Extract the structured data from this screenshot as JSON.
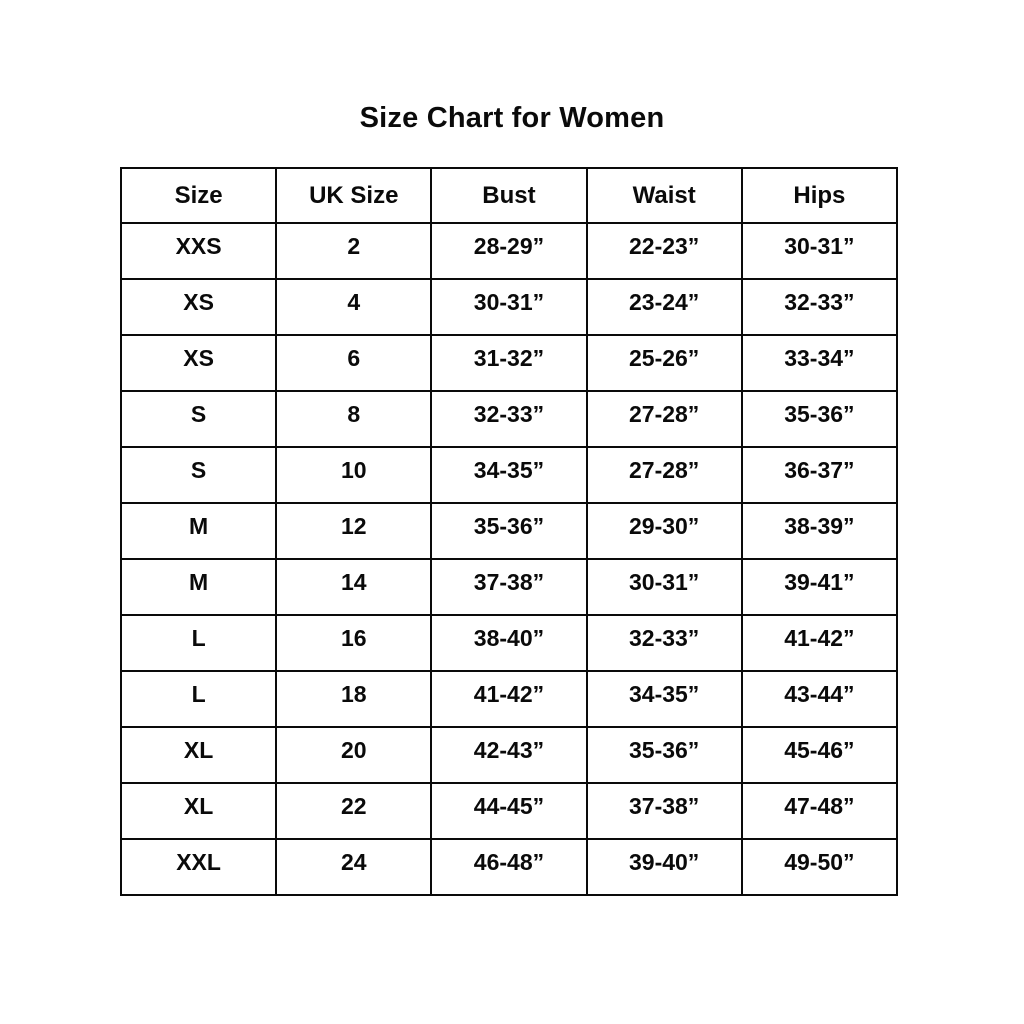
{
  "chart_data": {
    "type": "table",
    "title": "Size Chart for Women",
    "headers": [
      "Size",
      "UK Size",
      "Bust",
      "Waist",
      "Hips"
    ],
    "rows": [
      [
        "XXS",
        "2",
        "28-29”",
        "22-23”",
        "30-31”"
      ],
      [
        "XS",
        "4",
        "30-31”",
        "23-24”",
        "32-33”"
      ],
      [
        "XS",
        "6",
        "31-32”",
        "25-26”",
        "33-34”"
      ],
      [
        "S",
        "8",
        "32-33”",
        "27-28”",
        "35-36”"
      ],
      [
        "S",
        "10",
        "34-35”",
        "27-28”",
        "36-37”"
      ],
      [
        "M",
        "12",
        "35-36”",
        "29-30”",
        "38-39”"
      ],
      [
        "M",
        "14",
        "37-38”",
        "30-31”",
        "39-41”"
      ],
      [
        "L",
        "16",
        "38-40”",
        "32-33”",
        "41-42”"
      ],
      [
        "L",
        "18",
        "41-42”",
        "34-35”",
        "43-44”"
      ],
      [
        "XL",
        "20",
        "42-43”",
        "35-36”",
        "45-46”"
      ],
      [
        "XL",
        "22",
        "44-45”",
        "37-38”",
        "47-48”"
      ],
      [
        "XXL",
        "24",
        "46-48”",
        "39-40”",
        "49-50”"
      ]
    ],
    "text_color": "#0a0a0a",
    "border_color": "#0a0a0a",
    "background_color": "#ffffff",
    "grid": "on",
    "legend": "none"
  }
}
